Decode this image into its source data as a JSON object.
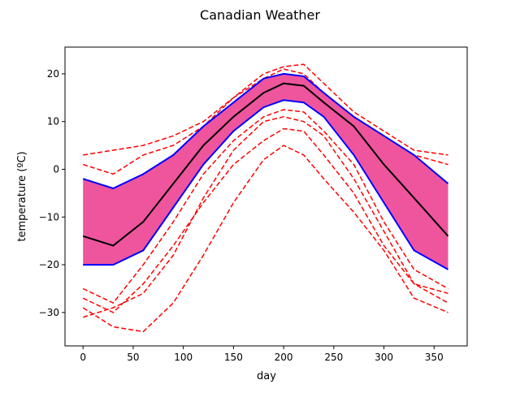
{
  "chart_data": {
    "type": "line",
    "title": "Canadian Weather",
    "xlabel": "day",
    "ylabel": "temperature (ºC)",
    "xlim": [
      -18,
      383
    ],
    "ylim": [
      -37,
      25.6
    ],
    "xticks": [
      0,
      50,
      100,
      150,
      200,
      250,
      300,
      350
    ],
    "yticks": [
      -30,
      -20,
      -10,
      0,
      10,
      20
    ],
    "grid": false,
    "colors": {
      "band": "#ee559d",
      "envelope": "#0000ff",
      "median": "#000000",
      "outlier": "#ff0000"
    },
    "x": [
      0,
      30,
      60,
      90,
      120,
      150,
      180,
      200,
      220,
      240,
      270,
      300,
      330,
      364
    ],
    "band": {
      "upper": [
        -2,
        -4,
        -1,
        3,
        9,
        14,
        19,
        20,
        19.5,
        16,
        11,
        7,
        3,
        -3
      ],
      "lower": [
        -20,
        -20,
        -17,
        -8,
        1,
        8,
        13,
        14.5,
        14,
        11,
        3,
        -7,
        -17,
        -21
      ]
    },
    "median": [
      -14,
      -16,
      -11,
      -3,
      5,
      11,
      16,
      18,
      17.5,
      14,
      9,
      1,
      -6,
      -14
    ],
    "outliers": [
      [
        3,
        4,
        5,
        7,
        10,
        15,
        20,
        21.5,
        22,
        18,
        12,
        8,
        4,
        3
      ],
      [
        1,
        -1,
        3,
        5,
        9,
        15,
        19,
        21,
        20,
        16,
        11,
        7,
        3,
        1
      ],
      [
        -29,
        -33,
        -34,
        -28,
        -18,
        -7,
        2,
        5,
        3,
        -2,
        -9,
        -17,
        -27,
        -30
      ],
      [
        -27,
        -30,
        -24,
        -16,
        -7,
        1,
        6,
        8.5,
        8,
        3,
        -5,
        -16,
        -24,
        -26
      ],
      [
        -25,
        -28,
        -20,
        -11,
        -1,
        6,
        11,
        12.5,
        12,
        8,
        1,
        -11,
        -21,
        -25
      ],
      [
        -31,
        -29,
        -26,
        -18,
        -6,
        4,
        10,
        11,
        10,
        7,
        -2,
        -13,
        -24,
        -28
      ]
    ]
  }
}
